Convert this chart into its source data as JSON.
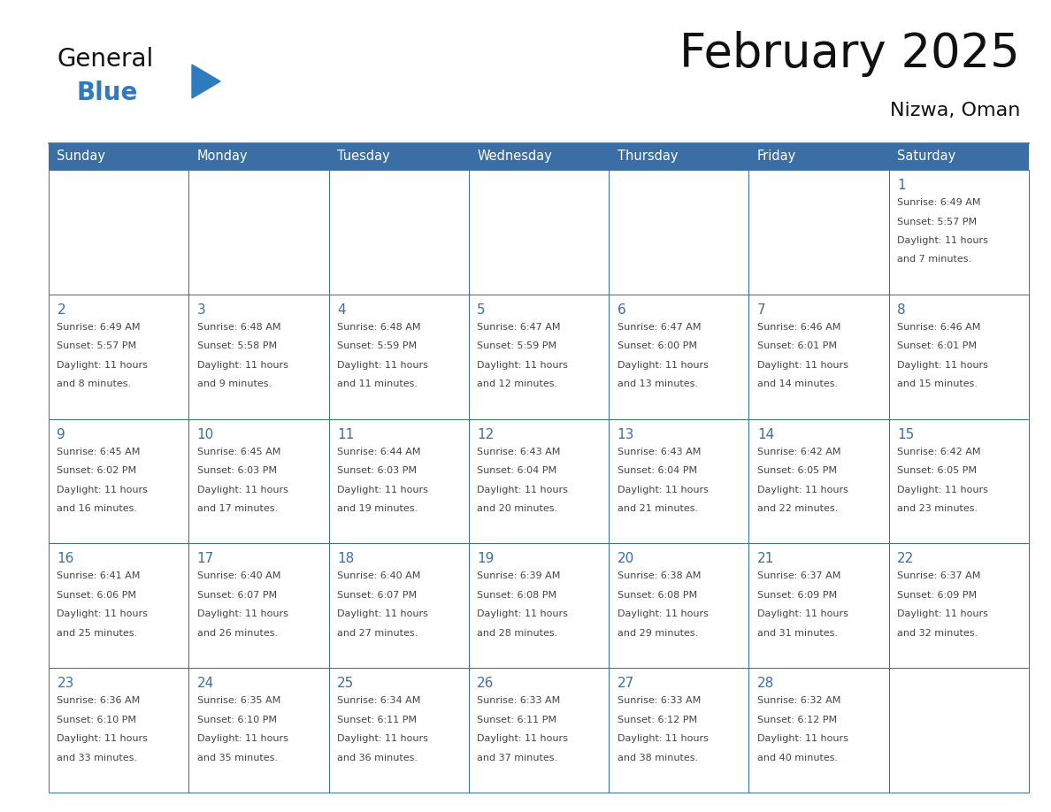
{
  "title": "February 2025",
  "subtitle": "Nizwa, Oman",
  "days_of_week": [
    "Sunday",
    "Monday",
    "Tuesday",
    "Wednesday",
    "Thursday",
    "Friday",
    "Saturday"
  ],
  "header_bg": "#3A6EA5",
  "header_text": "#FFFFFF",
  "cell_bg": "#FFFFFF",
  "cell_border": "#3A6EA5",
  "day_number_color": "#3A6EA5",
  "info_text_color": "#444444",
  "title_color": "#111111",
  "logo_general_color": "#111111",
  "logo_blue_color": "#2E7BBF",
  "calendar_data": [
    [
      {
        "day": null,
        "info": ""
      },
      {
        "day": null,
        "info": ""
      },
      {
        "day": null,
        "info": ""
      },
      {
        "day": null,
        "info": ""
      },
      {
        "day": null,
        "info": ""
      },
      {
        "day": null,
        "info": ""
      },
      {
        "day": 1,
        "info": "Sunrise: 6:49 AM\nSunset: 5:57 PM\nDaylight: 11 hours\nand 7 minutes."
      }
    ],
    [
      {
        "day": 2,
        "info": "Sunrise: 6:49 AM\nSunset: 5:57 PM\nDaylight: 11 hours\nand 8 minutes."
      },
      {
        "day": 3,
        "info": "Sunrise: 6:48 AM\nSunset: 5:58 PM\nDaylight: 11 hours\nand 9 minutes."
      },
      {
        "day": 4,
        "info": "Sunrise: 6:48 AM\nSunset: 5:59 PM\nDaylight: 11 hours\nand 11 minutes."
      },
      {
        "day": 5,
        "info": "Sunrise: 6:47 AM\nSunset: 5:59 PM\nDaylight: 11 hours\nand 12 minutes."
      },
      {
        "day": 6,
        "info": "Sunrise: 6:47 AM\nSunset: 6:00 PM\nDaylight: 11 hours\nand 13 minutes."
      },
      {
        "day": 7,
        "info": "Sunrise: 6:46 AM\nSunset: 6:01 PM\nDaylight: 11 hours\nand 14 minutes."
      },
      {
        "day": 8,
        "info": "Sunrise: 6:46 AM\nSunset: 6:01 PM\nDaylight: 11 hours\nand 15 minutes."
      }
    ],
    [
      {
        "day": 9,
        "info": "Sunrise: 6:45 AM\nSunset: 6:02 PM\nDaylight: 11 hours\nand 16 minutes."
      },
      {
        "day": 10,
        "info": "Sunrise: 6:45 AM\nSunset: 6:03 PM\nDaylight: 11 hours\nand 17 minutes."
      },
      {
        "day": 11,
        "info": "Sunrise: 6:44 AM\nSunset: 6:03 PM\nDaylight: 11 hours\nand 19 minutes."
      },
      {
        "day": 12,
        "info": "Sunrise: 6:43 AM\nSunset: 6:04 PM\nDaylight: 11 hours\nand 20 minutes."
      },
      {
        "day": 13,
        "info": "Sunrise: 6:43 AM\nSunset: 6:04 PM\nDaylight: 11 hours\nand 21 minutes."
      },
      {
        "day": 14,
        "info": "Sunrise: 6:42 AM\nSunset: 6:05 PM\nDaylight: 11 hours\nand 22 minutes."
      },
      {
        "day": 15,
        "info": "Sunrise: 6:42 AM\nSunset: 6:05 PM\nDaylight: 11 hours\nand 23 minutes."
      }
    ],
    [
      {
        "day": 16,
        "info": "Sunrise: 6:41 AM\nSunset: 6:06 PM\nDaylight: 11 hours\nand 25 minutes."
      },
      {
        "day": 17,
        "info": "Sunrise: 6:40 AM\nSunset: 6:07 PM\nDaylight: 11 hours\nand 26 minutes."
      },
      {
        "day": 18,
        "info": "Sunrise: 6:40 AM\nSunset: 6:07 PM\nDaylight: 11 hours\nand 27 minutes."
      },
      {
        "day": 19,
        "info": "Sunrise: 6:39 AM\nSunset: 6:08 PM\nDaylight: 11 hours\nand 28 minutes."
      },
      {
        "day": 20,
        "info": "Sunrise: 6:38 AM\nSunset: 6:08 PM\nDaylight: 11 hours\nand 29 minutes."
      },
      {
        "day": 21,
        "info": "Sunrise: 6:37 AM\nSunset: 6:09 PM\nDaylight: 11 hours\nand 31 minutes."
      },
      {
        "day": 22,
        "info": "Sunrise: 6:37 AM\nSunset: 6:09 PM\nDaylight: 11 hours\nand 32 minutes."
      }
    ],
    [
      {
        "day": 23,
        "info": "Sunrise: 6:36 AM\nSunset: 6:10 PM\nDaylight: 11 hours\nand 33 minutes."
      },
      {
        "day": 24,
        "info": "Sunrise: 6:35 AM\nSunset: 6:10 PM\nDaylight: 11 hours\nand 35 minutes."
      },
      {
        "day": 25,
        "info": "Sunrise: 6:34 AM\nSunset: 6:11 PM\nDaylight: 11 hours\nand 36 minutes."
      },
      {
        "day": 26,
        "info": "Sunrise: 6:33 AM\nSunset: 6:11 PM\nDaylight: 11 hours\nand 37 minutes."
      },
      {
        "day": 27,
        "info": "Sunrise: 6:33 AM\nSunset: 6:12 PM\nDaylight: 11 hours\nand 38 minutes."
      },
      {
        "day": 28,
        "info": "Sunrise: 6:32 AM\nSunset: 6:12 PM\nDaylight: 11 hours\nand 40 minutes."
      },
      {
        "day": null,
        "info": ""
      }
    ]
  ],
  "fig_width": 11.88,
  "fig_height": 9.18,
  "dpi": 100
}
